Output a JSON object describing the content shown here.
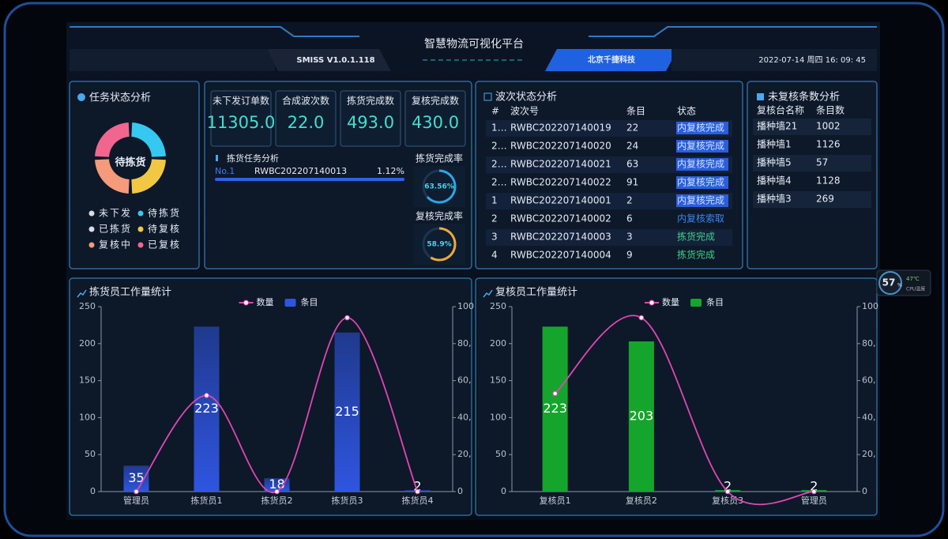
{
  "header": {
    "title": "智慧物流可视化平台",
    "version": "SMISS V1.0.1.118",
    "company": "北京千捷科技",
    "datetime": "2022-07-14 周四 16: 09: 45"
  },
  "task_status": {
    "title": "任务状态分析",
    "center_label": "待拣货",
    "type": "pie",
    "categories": [
      "未下发",
      "待拣货",
      "已拣货",
      "待复核",
      "复核中",
      "已复核"
    ],
    "values": [
      0,
      25,
      0,
      25,
      25,
      25
    ],
    "colors": [
      "#d9dde3",
      "#35c8f0",
      "#d9dde3",
      "#f2c744",
      "#f59a7a",
      "#f0668e"
    ]
  },
  "stats": [
    {
      "label": "未下发订单数",
      "value": "11305.0"
    },
    {
      "label": "合成波次数",
      "value": "22.0"
    },
    {
      "label": "拣货完成数",
      "value": "493.0"
    },
    {
      "label": "复核完成数",
      "value": "430.0"
    }
  ],
  "picking_tasks": {
    "title": "拣货任务分析",
    "rows": [
      {
        "rank": "No.1",
        "wave": "RWBC202207140013",
        "percent": "1.12%"
      }
    ]
  },
  "rates": [
    {
      "label": "拣货完成率",
      "value": 63.56,
      "value_label": "63.56%",
      "color": "#2aa7e8"
    },
    {
      "label": "复核完成率",
      "value": 58.9,
      "value_label": "58.9%",
      "color": "#f0a93a"
    }
  ],
  "wave_status": {
    "title": "波次状态分析",
    "headers": [
      "#",
      "波次号",
      "条目",
      "状态"
    ],
    "rows": [
      [
        "1…",
        "RWBC202207140019",
        "22",
        "内复核完成"
      ],
      [
        "2…",
        "RWBC202207140020",
        "24",
        "内复核完成"
      ],
      [
        "2…",
        "RWBC202207140021",
        "63",
        "内复核完成"
      ],
      [
        "2…",
        "RWBC202207140022",
        "91",
        "内复核完成"
      ],
      [
        "1",
        "RWBC202207140001",
        "2",
        "内复核完成"
      ],
      [
        "2",
        "RWBC202207140002",
        "6",
        "内复核索取"
      ],
      [
        "3",
        "RWBC202207140003",
        "3",
        "拣货完成"
      ],
      [
        "4",
        "RWBC202207140004",
        "9",
        "拣货完成"
      ]
    ]
  },
  "unreviewed": {
    "title": "未复核条数分析",
    "headers": [
      "复核台名称",
      "条目数"
    ],
    "rows": [
      [
        "播种墙21",
        "1002"
      ],
      [
        "播种墙1",
        "1126"
      ],
      [
        "播种墙5",
        "57"
      ],
      [
        "播种墙4",
        "1128"
      ],
      [
        "播种墙3",
        "269"
      ]
    ]
  },
  "cpu": {
    "usage": "57",
    "unit": "%",
    "temperature": "47℃",
    "label": "CPU温度"
  },
  "charts": [
    {
      "type": "bar",
      "title": "拣货员工作量统计",
      "categories": [
        "管理员",
        "拣货员1",
        "拣货员2",
        "拣货员3",
        "拣货员4"
      ],
      "series": [
        {
          "name": "数量",
          "type": "line",
          "axis": "y2",
          "color": "#e046b4",
          "values": [
            0,
            52,
            0,
            94,
            0
          ]
        },
        {
          "name": "条目",
          "type": "bar",
          "color": "#2f55e0",
          "values": [
            35,
            223,
            18,
            215,
            2
          ]
        }
      ],
      "ylim": [
        0,
        250
      ],
      "yticks": [
        0,
        50,
        100,
        150,
        200,
        250
      ],
      "y2lim": [
        0,
        100
      ],
      "y2ticks": [
        0,
        {
          "value": 20,
          "label": "20,"
        },
        {
          "value": 40,
          "label": "40,"
        },
        {
          "value": 60,
          "label": "60,"
        },
        {
          "value": 80,
          "label": "80,"
        },
        100
      ]
    },
    {
      "type": "bar",
      "title": "复核员工作量统计",
      "categories": [
        "复核员1",
        "复核员2",
        "复核员3",
        "管理员"
      ],
      "series": [
        {
          "name": "数量",
          "type": "line",
          "axis": "y2",
          "color": "#e046b4",
          "values": [
            53,
            94,
            0,
            0
          ]
        },
        {
          "name": "条目",
          "type": "bar",
          "color": "#16a52c",
          "values": [
            223,
            203,
            2,
            2
          ]
        }
      ],
      "ylim": [
        0,
        250
      ],
      "yticks": [
        0,
        50,
        100,
        150,
        200,
        250
      ],
      "y2lim": [
        0,
        100
      ],
      "y2ticks": [
        0,
        {
          "value": 20,
          "label": "20,"
        },
        {
          "value": 40,
          "label": "40,"
        },
        {
          "value": 60,
          "label": "60,"
        },
        {
          "value": 80,
          "label": "80,"
        },
        100
      ]
    }
  ]
}
